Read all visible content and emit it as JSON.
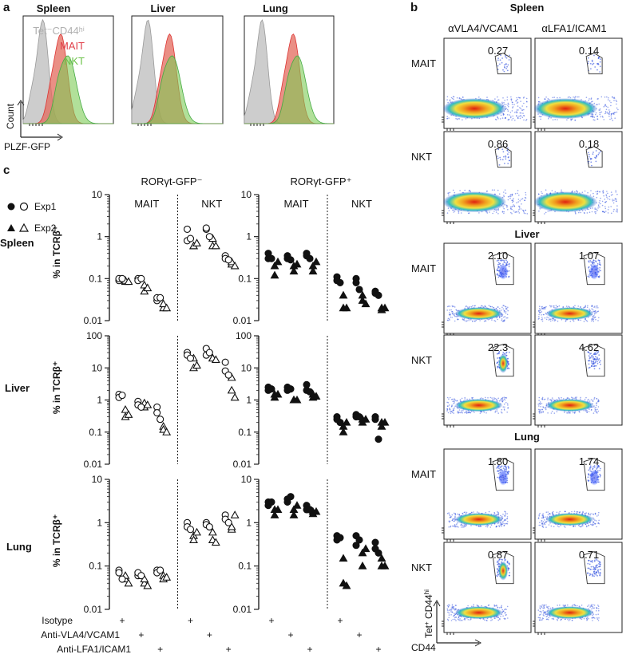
{
  "panel_labels": {
    "a": "a",
    "b": "b",
    "c": "c"
  },
  "colors": {
    "tet": "#bdbdbd",
    "mait": "#e0404a",
    "nkt": "#6cc24a",
    "overlap": "#b5824a"
  },
  "chart_data": [
    {
      "type": "area",
      "panel": "a",
      "title": "PLZF-GFP histograms",
      "xlabel": "PLZF-GFP",
      "ylabel": "Count",
      "organs": [
        "Spleen",
        "Liver",
        "Lung"
      ],
      "legend": {
        "tet_label": "Tet⁻CD44ʰⁱ",
        "mait_label": "MAIT",
        "nkt_label": "NKT",
        "placement": "top-right of Spleen histogram"
      },
      "series": [
        {
          "name": "Tet-CD44hi",
          "spleen_peak": 0.22,
          "liver_peak": 0.18,
          "lung_peak": 0.2
        },
        {
          "name": "MAIT",
          "spleen_peak": 0.42,
          "liver_peak": 0.42,
          "lung_peak": 0.55
        },
        {
          "name": "NKT",
          "spleen_peak": 0.5,
          "liver_peak": 0.45,
          "lung_peak": 0.6
        }
      ]
    },
    {
      "type": "scatter",
      "panel": "b",
      "title": "Spleen",
      "section_titles": [
        "Spleen",
        "Liver",
        "Lung"
      ],
      "columns": [
        "αVLA4/VCAM1",
        "αLFA1/ICAM1"
      ],
      "rows": [
        "MAIT",
        "NKT"
      ],
      "xlabel": "CD44",
      "ylabel_main": "Tet",
      "ylabel_sup1": "+",
      "ylabel_mid": " CD44",
      "ylabel_sup2": "hi",
      "gate_values": [
        [
          "0.27",
          "0.14",
          "0.86",
          "0.18"
        ],
        [
          "2.10",
          "1.07",
          "22.3",
          "4.62"
        ],
        [
          "1.80",
          "1.74",
          "0.87",
          "0.71"
        ]
      ]
    },
    {
      "type": "scatter",
      "panel": "c",
      "column_titles": [
        "RORγt-GFP⁻",
        "RORγt-GFP⁺"
      ],
      "groups": [
        "MAIT",
        "NKT"
      ],
      "rows": [
        "Spleen",
        "Liver",
        "Lung"
      ],
      "ylabel": "% in TCRβ⁺",
      "legend": {
        "exp1": "Exp1",
        "exp2": "Exp2"
      },
      "x_treatments": [
        "Isotype",
        "Anti-VLA4/VCAM1",
        "Anti-LFA1/ICAM1"
      ],
      "plus_sign": "+",
      "y_scale": "log",
      "ylims": [
        [
          0.01,
          10
        ],
        [
          0.01,
          100
        ],
        [
          0.01,
          10
        ]
      ],
      "yticks": [
        [
          "0.01",
          "0.1",
          "1",
          "10"
        ],
        [
          "0.01",
          "0.1",
          "1",
          "10",
          "100"
        ],
        [
          "0.01",
          "0.1",
          "1",
          "10"
        ]
      ],
      "plots": {
        "spleen_neg": [
          [
            0.09,
            0.085,
            0.1,
            0.09,
            0.1,
            0.085
          ],
          [
            0.1,
            0.07,
            0.09,
            0.05,
            0.1,
            0.06
          ],
          [
            0.03,
            0.02,
            0.035,
            0.025,
            0.035,
            0.02
          ],
          [
            0.8,
            0.6,
            1.5,
            0.6,
            0.9,
            0.7
          ],
          [
            1.5,
            0.6,
            1.6,
            0.9,
            1.0,
            0.6
          ],
          [
            0.35,
            0.22,
            0.3,
            0.25,
            0.28,
            0.2
          ]
        ],
        "spleen_pos": [
          [
            0.3,
            0.2,
            0.4,
            0.12,
            0.3,
            0.25
          ],
          [
            0.3,
            0.2,
            0.35,
            0.15,
            0.28,
            0.22
          ],
          [
            0.35,
            0.2,
            0.4,
            0.15,
            0.3,
            0.25
          ],
          [
            0.11,
            0.04,
            0.09,
            0.02,
            0.08,
            0.02
          ],
          [
            0.1,
            0.04,
            0.08,
            0.03,
            0.055,
            0.025
          ],
          [
            0.05,
            0.02,
            0.045,
            0.018,
            0.04,
            0.02
          ]
        ],
        "liver_neg": [
          [
            1.5,
            0.5,
            1.2,
            0.3,
            1.4,
            0.35
          ],
          [
            0.9,
            0.6,
            0.7,
            0.8,
            0.6,
            0.7
          ],
          [
            0.6,
            0.15,
            0.4,
            0.12,
            0.25,
            0.1
          ],
          [
            30,
            10,
            25,
            20,
            20,
            12
          ],
          [
            40,
            20,
            25,
            20,
            30,
            18
          ],
          [
            15,
            5,
            8,
            2,
            6,
            1.2
          ]
        ],
        "liver_pos": [
          [
            2.5,
            1.5,
            2.0,
            1.2,
            2.2,
            1.5
          ],
          [
            2.5,
            1.0,
            2.0,
            1.0,
            2.2,
            1.0
          ],
          [
            3.0,
            1.5,
            2.0,
            1.2,
            1.8,
            1.3
          ],
          [
            0.3,
            0.1,
            0.25,
            0.15,
            0.2,
            0.2
          ],
          [
            0.35,
            0.2,
            0.3,
            0.25,
            0.3,
            0.25
          ],
          [
            0.3,
            0.2,
            0.25,
            0.15,
            0.06,
            0.2
          ]
        ],
        "lung_neg": [
          [
            0.08,
            0.05,
            0.07,
            0.06,
            0.05,
            0.04
          ],
          [
            0.06,
            0.04,
            0.07,
            0.05,
            0.06,
            0.035
          ],
          [
            0.08,
            0.06,
            0.07,
            0.05,
            0.08,
            0.055
          ],
          [
            1.0,
            0.5,
            0.8,
            0.4,
            0.7,
            0.6
          ],
          [
            1.0,
            0.4,
            0.9,
            0.6,
            0.8,
            0.35
          ],
          [
            1.5,
            0.7,
            1.2,
            0.8,
            1.0,
            1.5
          ]
        ],
        "lung_pos": [
          [
            3.0,
            2.0,
            2.5,
            1.5,
            3.0,
            2.0
          ],
          [
            3.5,
            2.0,
            3.0,
            1.5,
            4.0,
            2.5
          ],
          [
            2.5,
            1.8,
            2.0,
            1.6,
            2.0,
            1.8
          ],
          [
            0.5,
            0.04,
            0.4,
            0.15,
            0.45,
            0.035
          ],
          [
            0.5,
            0.2,
            0.3,
            0.1,
            0.4,
            0.25
          ],
          [
            0.35,
            0.15,
            0.25,
            0.1,
            0.2,
            0.1
          ]
        ]
      }
    }
  ]
}
